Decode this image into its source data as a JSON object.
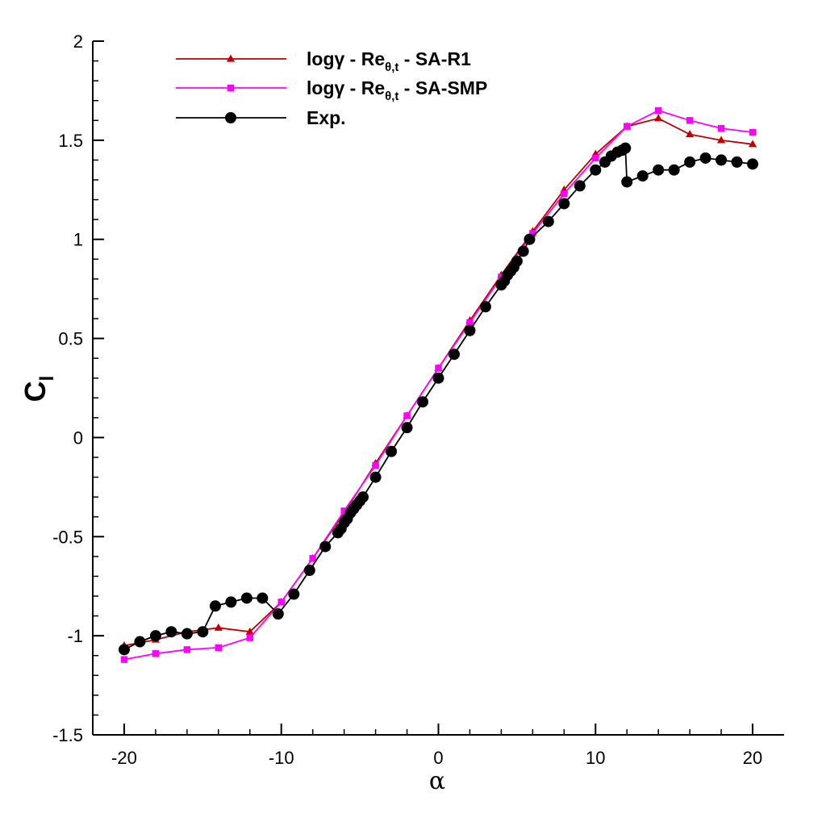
{
  "chart_data": {
    "type": "line",
    "title": "",
    "xlabel": "α",
    "ylabel": "C",
    "ylabel_sub": "l",
    "xlim": [
      -22,
      22
    ],
    "ylim": [
      -1.5,
      2
    ],
    "xticks": [
      -20,
      -10,
      0,
      10,
      20
    ],
    "xtick_labels": [
      "-20",
      "-10",
      "0",
      "10",
      "20"
    ],
    "yticks": [
      -1.5,
      -1,
      -0.5,
      0,
      0.5,
      1,
      1.5,
      2
    ],
    "ytick_labels": [
      "-1.5",
      "-1",
      "-0.5",
      "0",
      "0.5",
      "1",
      "1.5",
      "2"
    ],
    "grid": false,
    "legend_position": "top-left",
    "series": [
      {
        "name": "logγ - Reθ,t - SA-R1",
        "legend": {
          "pre": "logγ - Re",
          "sub": "θ,t",
          "post": " - SA-R1"
        },
        "color": "#c00000",
        "marker": "triangle",
        "x": [
          -20,
          -18,
          -16,
          -14,
          -12,
          -10,
          -8,
          -6,
          -4,
          -2,
          0,
          2,
          4,
          6,
          8,
          10,
          12,
          14,
          16,
          18,
          20
        ],
        "y": [
          -1.05,
          -1.02,
          -0.98,
          -0.96,
          -0.98,
          -0.83,
          -0.61,
          -0.38,
          -0.13,
          0.11,
          0.35,
          0.59,
          0.82,
          1.04,
          1.25,
          1.43,
          1.57,
          1.61,
          1.53,
          1.5,
          1.48
        ]
      },
      {
        "name": "logγ - Reθ,t - SA-SMP",
        "legend": {
          "pre": "logγ - Re",
          "sub": "θ,t",
          "post": " - SA-SMP"
        },
        "color": "#ff00ff",
        "marker": "square",
        "x": [
          -20,
          -18,
          -16,
          -14,
          -12,
          -10,
          -8,
          -6,
          -4,
          -2,
          0,
          2,
          4,
          6,
          8,
          10,
          12,
          14,
          16,
          18,
          20
        ],
        "y": [
          -1.12,
          -1.09,
          -1.07,
          -1.06,
          -1.01,
          -0.83,
          -0.61,
          -0.37,
          -0.14,
          0.11,
          0.35,
          0.58,
          0.81,
          1.03,
          1.23,
          1.41,
          1.57,
          1.65,
          1.6,
          1.56,
          1.54
        ]
      },
      {
        "name": "Exp.",
        "legend": {
          "pre": "Exp.",
          "sub": "",
          "post": ""
        },
        "color": "#000000",
        "marker": "circle",
        "x": [
          -20,
          -19,
          -18,
          -17,
          -16,
          -15,
          -14.2,
          -13.2,
          -12.2,
          -11.2,
          -10.2,
          -9.2,
          -8.2,
          -7.2,
          -6.4,
          -6.2,
          -6.0,
          -5.8,
          -5.6,
          -5.4,
          -5.2,
          -5.0,
          -4.8,
          -4.0,
          -3.0,
          -2.0,
          -1.0,
          0,
          1,
          2,
          3,
          4,
          4.2,
          4.4,
          4.6,
          4.8,
          5.0,
          5.4,
          5.8,
          7,
          8,
          9,
          10,
          10.6,
          11.0,
          11.4,
          11.7,
          11.9,
          12.0,
          13.0,
          14.0,
          15.0,
          16.0,
          17.0,
          18.0,
          19.0,
          20.0
        ],
        "y": [
          -1.07,
          -1.03,
          -1.0,
          -0.98,
          -0.99,
          -0.98,
          -0.85,
          -0.83,
          -0.81,
          -0.81,
          -0.89,
          -0.79,
          -0.67,
          -0.55,
          -0.48,
          -0.46,
          -0.43,
          -0.41,
          -0.38,
          -0.36,
          -0.34,
          -0.32,
          -0.3,
          -0.2,
          -0.07,
          0.05,
          0.18,
          0.3,
          0.42,
          0.54,
          0.66,
          0.77,
          0.79,
          0.82,
          0.84,
          0.86,
          0.89,
          0.94,
          1.0,
          1.09,
          1.18,
          1.27,
          1.35,
          1.39,
          1.42,
          1.44,
          1.45,
          1.46,
          1.29,
          1.32,
          1.35,
          1.35,
          1.39,
          1.41,
          1.4,
          1.39,
          1.38
        ]
      }
    ]
  }
}
